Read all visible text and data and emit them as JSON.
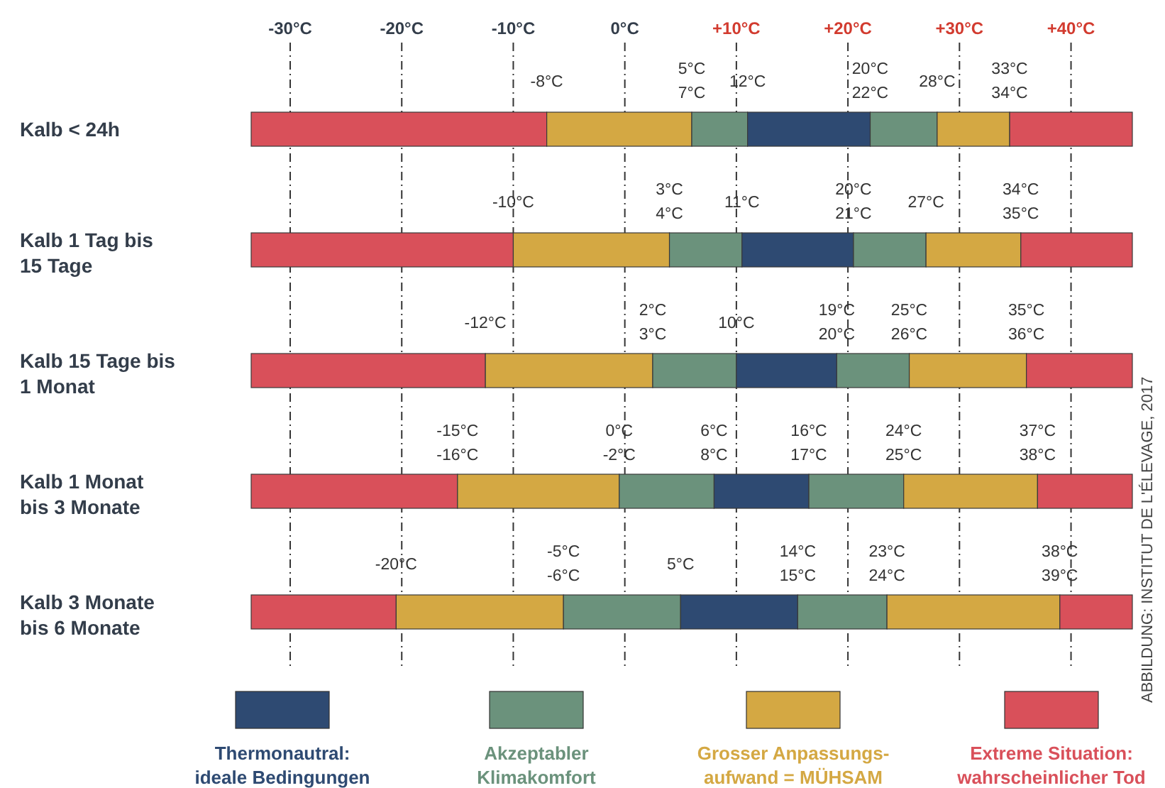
{
  "chart_data": {
    "type": "bar",
    "orientation": "horizontal",
    "categories": [
      "Kalb < 24h",
      "Kalb 1 Tag bis\n15 Tage",
      "Kalb 15 Tage bis\n1 Monat",
      "Kalb 1 Monat\nbis 3 Monate",
      "Kalb 3 Monate\nbis 6 Monate"
    ],
    "series": [
      {
        "name": "Extreme Situation:\nwahrscheinlicher Tod",
        "color": "#d9505a",
        "base": [
          -33.5,
          -33.5,
          -33.5,
          -33.5,
          -33.5
        ],
        "values": [
          26.5,
          23.5,
          21,
          18.5,
          13
        ]
      },
      {
        "name": "Grosser Anpassungs-\naufwand = MÜHSAM",
        "color": "#d4a843",
        "base": [
          -7,
          -10,
          -12.5,
          -15,
          -20.5
        ],
        "values": [
          13,
          14,
          15,
          14.5,
          15
        ]
      },
      {
        "name": "Akzeptabler\nKlimakomfort",
        "color": "#6b927c",
        "base": [
          6,
          4,
          2.5,
          -0.5,
          -5.5
        ],
        "values": [
          5,
          6.5,
          7.5,
          8.5,
          10.5
        ]
      },
      {
        "name": "Thermonautral:\nideale Bedingungen",
        "color": "#2e4a72",
        "base": [
          11,
          10.5,
          10,
          8,
          5
        ],
        "values": [
          11,
          10,
          9,
          8.5,
          10.5
        ]
      },
      {
        "color": "#6b927c",
        "base": [
          22,
          20.5,
          19,
          16.5,
          15.5
        ],
        "values": [
          6,
          6.5,
          6.5,
          8.5,
          8
        ]
      },
      {
        "color": "#d4a843",
        "base": [
          28,
          27,
          25.5,
          25,
          23.5
        ],
        "values": [
          6.5,
          8.5,
          10.5,
          12,
          15.5
        ]
      },
      {
        "color": "#d9505a",
        "base": [
          34.5,
          35.5,
          36,
          37,
          39
        ],
        "values": [
          11,
          10,
          9.5,
          8.5,
          6.5
        ]
      }
    ],
    "xlim": [
      -33.5,
      45.5
    ],
    "xticks": [
      {
        "value": -30,
        "label": "-30°C"
      },
      {
        "value": -20,
        "label": "-20°C"
      },
      {
        "value": -10,
        "label": "-10°C"
      },
      {
        "value": 0,
        "label": "0°C"
      },
      {
        "value": 10,
        "label": "+10°C"
      },
      {
        "value": 20,
        "label": "+20°C"
      },
      {
        "value": 30,
        "label": "+30°C"
      },
      {
        "value": 40,
        "label": "+40°C"
      }
    ],
    "grid": "x",
    "legend": "bottom",
    "annotations": [
      {
        "text": "-8°C",
        "x": -7,
        "y": "Kalb < 24h"
      },
      {
        "text": "5°C\n7°C",
        "x": 6,
        "y": "Kalb < 24h"
      },
      {
        "text": "12°C",
        "x": 11,
        "y": "Kalb < 24h"
      },
      {
        "text": "20°C\n22°C",
        "x": 22,
        "y": "Kalb < 24h"
      },
      {
        "text": "28°C",
        "x": 28,
        "y": "Kalb < 24h"
      },
      {
        "text": "33°C\n34°C",
        "x": 34.5,
        "y": "Kalb < 24h"
      },
      {
        "text": "-10°C",
        "x": -10,
        "y": "Kalb 1 Tag bis\n15 Tage"
      },
      {
        "text": "3°C\n4°C",
        "x": 4,
        "y": "Kalb 1 Tag bis\n15 Tage"
      },
      {
        "text": "11°C",
        "x": 10.5,
        "y": "Kalb 1 Tag bis\n15 Tage"
      },
      {
        "text": "20°C\n21°C",
        "x": 20.5,
        "y": "Kalb 1 Tag bis\n15 Tage"
      },
      {
        "text": "27°C",
        "x": 27,
        "y": "Kalb 1 Tag bis\n15 Tage"
      },
      {
        "text": "34°C\n35°C",
        "x": 35.5,
        "y": "Kalb 1 Tag bis\n15 Tage"
      },
      {
        "text": "-12°C",
        "x": -12.5,
        "y": "Kalb 15 Tage bis\n1 Monat"
      },
      {
        "text": "2°C\n3°C",
        "x": 2.5,
        "y": "Kalb 15 Tage bis\n1 Monat"
      },
      {
        "text": "10°C",
        "x": 10,
        "y": "Kalb 15 Tage bis\n1 Monat"
      },
      {
        "text": "19°C\n20°C",
        "x": 19,
        "y": "Kalb 15 Tage bis\n1 Monat"
      },
      {
        "text": "25°C\n26°C",
        "x": 25.5,
        "y": "Kalb 15 Tage bis\n1 Monat"
      },
      {
        "text": "35°C\n36°C",
        "x": 36,
        "y": "Kalb 15 Tage bis\n1 Monat"
      },
      {
        "text": "-15°C\n-16°C",
        "x": -15,
        "y": "Kalb 1 Monat\nbis 3 Monate"
      },
      {
        "text": "0°C\n-2°C",
        "x": -0.5,
        "y": "Kalb 1 Monat\nbis 3 Monate"
      },
      {
        "text": "6°C\n8°C",
        "x": 8,
        "y": "Kalb 1 Monat\nbis 3 Monate"
      },
      {
        "text": "16°C\n17°C",
        "x": 16.5,
        "y": "Kalb 1 Monat\nbis 3 Monate"
      },
      {
        "text": "24°C\n25°C",
        "x": 25,
        "y": "Kalb 1 Monat\nbis 3 Monate"
      },
      {
        "text": "37°C\n38°C",
        "x": 37,
        "y": "Kalb 1 Monat\nbis 3 Monate"
      },
      {
        "text": "-20°C",
        "x": -20.5,
        "y": "Kalb 3 Monate\nbis 6 Monate"
      },
      {
        "text": "-5°C\n-6°C",
        "x": -5.5,
        "y": "Kalb 3 Monate\nbis 6 Monate"
      },
      {
        "text": "5°C",
        "x": 5,
        "y": "Kalb 3 Monate\nbis 6 Monate"
      },
      {
        "text": "14°C\n15°C",
        "x": 15.5,
        "y": "Kalb 3 Monate\nbis 6 Monate"
      },
      {
        "text": "23°C\n24°C",
        "x": 23.5,
        "y": "Kalb 3 Monate\nbis 6 Monate"
      },
      {
        "text": "38°C\n39°C",
        "x": 39,
        "y": "Kalb 3 Monate\nbis 6 Monate"
      },
      "ABBILDUNG: INSTITUT DE L'ÉLEVAGE, 2017"
    ]
  }
}
